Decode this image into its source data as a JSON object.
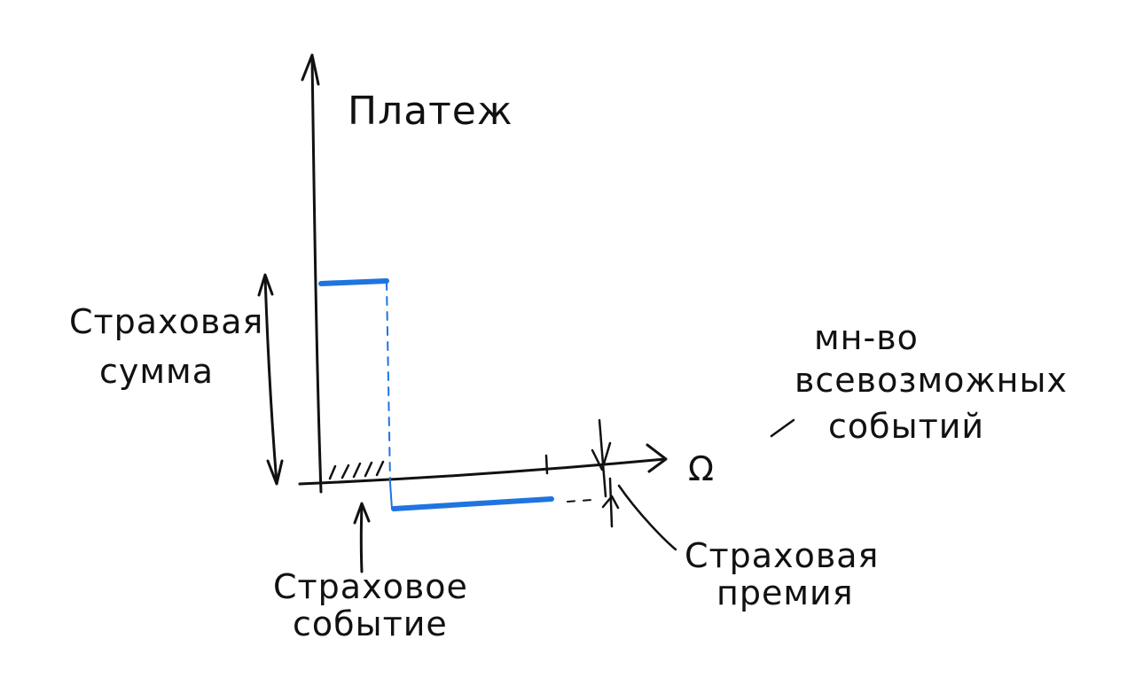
{
  "diagram": {
    "y_axis_label": "Платеж",
    "sum_label": [
      "Страховая",
      "сумма"
    ],
    "event_label": [
      "Страховое",
      "событие"
    ],
    "premium_label": [
      "Страховая",
      "премия"
    ],
    "set_label": [
      "мн-во",
      "всевозможных",
      "событий"
    ],
    "omega_symbol": "Ω",
    "colors": {
      "ink": "#111111",
      "accent": "#1f74e0"
    }
  }
}
